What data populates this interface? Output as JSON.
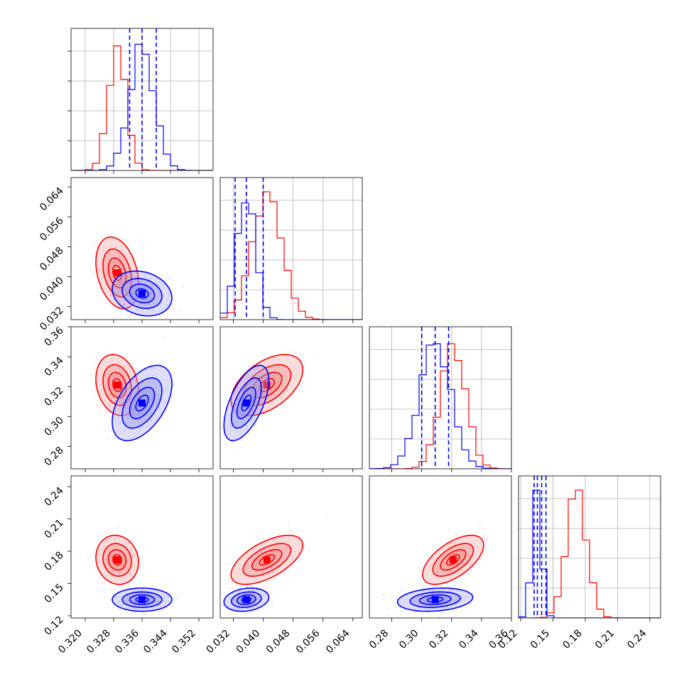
{
  "chart_data": {
    "type": "corner",
    "series": [
      {
        "name": "",
        "color": "#ff0000"
      },
      {
        "name": "",
        "color": "#0000ff"
      }
    ],
    "parameters": [
      {
        "range": [
          0.316,
          0.356
        ],
        "ticks": [
          "0.320",
          "0.328",
          "0.336",
          "0.344",
          "0.352"
        ],
        "tick_values": [
          0.32,
          0.328,
          0.336,
          0.344,
          0.352
        ]
      },
      {
        "range": [
          0.0285,
          0.0665
        ],
        "ticks": [
          "0.032",
          "0.040",
          "0.048",
          "0.056",
          "0.064"
        ],
        "tick_values": [
          0.032,
          0.04,
          0.048,
          0.056,
          0.064
        ]
      },
      {
        "range": [
          0.265,
          0.36
        ],
        "ticks": [
          "0.28",
          "0.30",
          "0.32",
          "0.34",
          "0.36"
        ],
        "tick_values": [
          0.28,
          0.3,
          0.32,
          0.34,
          0.36
        ]
      },
      {
        "range": [
          0.118,
          0.25
        ],
        "ticks": [
          "0.12",
          "0.15",
          "0.18",
          "0.21",
          "0.24"
        ],
        "tick_values": [
          0.12,
          0.15,
          0.18,
          0.21,
          0.24
        ]
      }
    ],
    "quantiles_blue": [
      [
        0.3325,
        0.336,
        0.34
      ],
      [
        0.0325,
        0.0355,
        0.04
      ],
      [
        0.3,
        0.309,
        0.318
      ],
      [
        0.1325,
        0.1355,
        0.1395,
        0.1435
      ]
    ],
    "means": {
      "red": [
        0.329,
        0.041,
        0.321,
        0.172
      ],
      "blue": [
        0.336,
        0.0355,
        0.309,
        0.135
      ]
    },
    "sigmas": {
      "red": [
        0.0025,
        0.004,
        0.0085,
        0.0095
      ],
      "blue": [
        0.0035,
        0.0025,
        0.0105,
        0.0045
      ]
    },
    "correlations": {
      "red": [
        [
          1,
          -0.3,
          -0.2,
          -0.1
        ],
        [
          -0.3,
          1,
          0.5,
          0.6
        ],
        [
          -0.2,
          0.5,
          1,
          0.6
        ],
        [
          -0.1,
          0.6,
          0.6,
          1
        ]
      ],
      "blue": [
        [
          1,
          -0.2,
          0.5,
          0.0
        ],
        [
          -0.2,
          1,
          0.6,
          0.2
        ],
        [
          0.5,
          0.6,
          1,
          0.2
        ],
        [
          0.0,
          0.2,
          0.2,
          1
        ]
      ]
    },
    "grid": true,
    "legend": "none"
  }
}
